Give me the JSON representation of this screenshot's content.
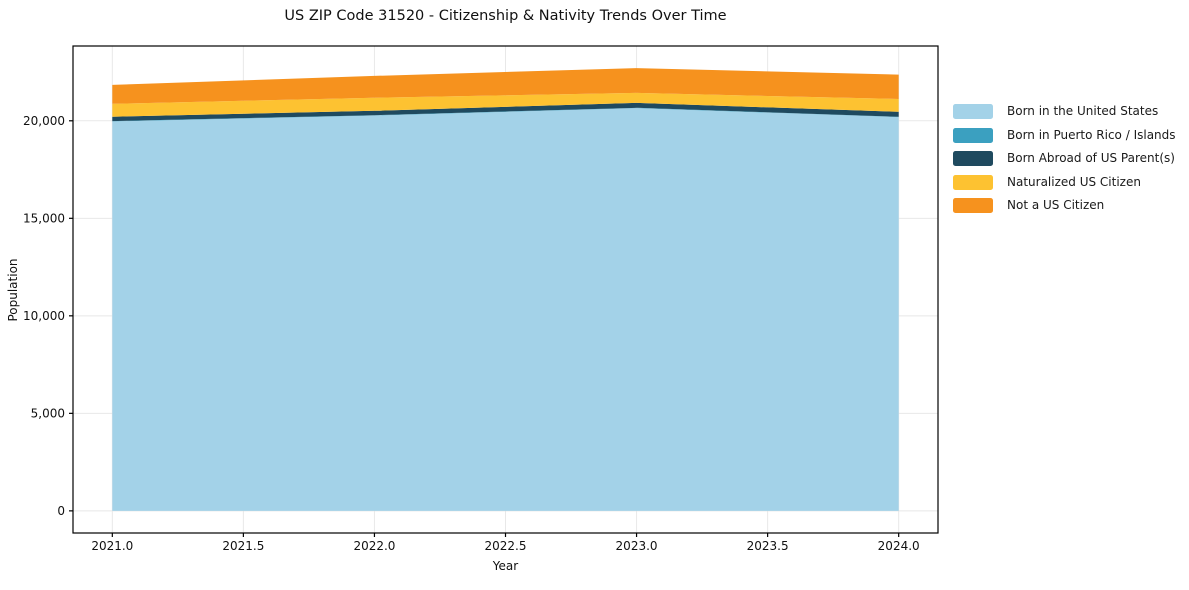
{
  "chart_data": {
    "type": "area",
    "stacked": true,
    "title": "US ZIP Code 31520 - Citizenship & Nativity Trends Over Time",
    "xlabel": "Year",
    "ylabel": "Population",
    "x": [
      2021,
      2022,
      2023,
      2024
    ],
    "series": [
      {
        "name": "Born in the United States",
        "color": "#a3d2e8",
        "values": [
          19970,
          20270,
          20650,
          20190
        ]
      },
      {
        "name": "Born in Puerto Rico / Islands",
        "color": "#3ba0c0",
        "values": [
          15,
          15,
          15,
          15
        ]
      },
      {
        "name": "Born Abroad of US Parent(s)",
        "color": "#1f4a5f",
        "values": [
          225,
          230,
          255,
          255
        ]
      },
      {
        "name": "Naturalized US Citizen",
        "color": "#fdc231",
        "values": [
          660,
          665,
          510,
          660
        ]
      },
      {
        "name": "Not a US Citizen",
        "color": "#f6921e",
        "values": [
          970,
          1120,
          1270,
          1250
        ]
      }
    ],
    "xlim": [
      2020.85,
      2024.15
    ],
    "ylim": [
      -1135,
      23835
    ],
    "xticks": [
      {
        "v": 2021.0,
        "label": "2021.0"
      },
      {
        "v": 2021.5,
        "label": "2021.5"
      },
      {
        "v": 2022.0,
        "label": "2022.0"
      },
      {
        "v": 2022.5,
        "label": "2022.5"
      },
      {
        "v": 2023.0,
        "label": "2023.0"
      },
      {
        "v": 2023.5,
        "label": "2023.5"
      },
      {
        "v": 2024.0,
        "label": "2024.0"
      }
    ],
    "yticks": [
      {
        "v": 0,
        "label": "0"
      },
      {
        "v": 5000,
        "label": "5,000"
      },
      {
        "v": 10000,
        "label": "10,000"
      },
      {
        "v": 15000,
        "label": "15,000"
      },
      {
        "v": 20000,
        "label": "20,000"
      }
    ],
    "grid": true,
    "legend_position": "right",
    "colors": {
      "spine": "#000000",
      "tick": "#000000",
      "gridline": "#e3e3e3",
      "text": "#111111",
      "background": "#ffffff"
    }
  }
}
